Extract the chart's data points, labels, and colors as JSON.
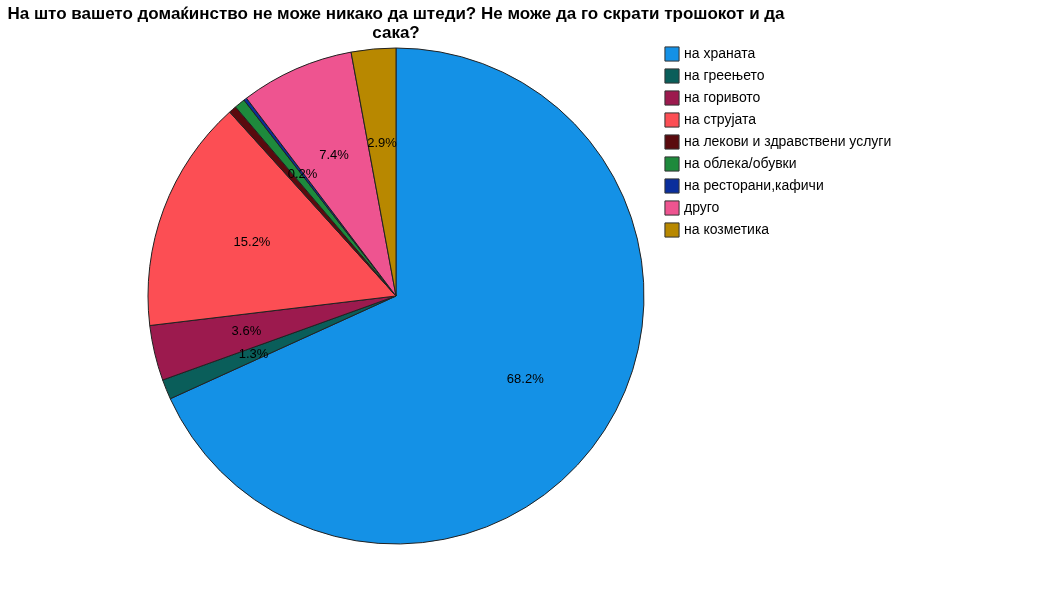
{
  "chart_data": {
    "type": "pie",
    "title": "На што вашето домаќинство  не може никако да штеди? Не може да го скрати трошокот и да сака?",
    "categories": [
      "на храната",
      "на греењето",
      "на горивото",
      "на струјата",
      "на лекови и здравствени услуги",
      "на облека/обувки",
      "на ресторани,кафичи",
      "друго",
      "на козметика"
    ],
    "values": [
      68.2,
      1.3,
      3.6,
      15.2,
      0.5,
      0.7,
      0.2,
      7.4,
      2.9
    ],
    "value_labels": [
      "68.2%",
      "1.3%",
      "3.6%",
      "15.2%",
      null,
      null,
      "0.2%",
      "7.4%",
      "2.9%"
    ],
    "colors": [
      "#1491e6",
      "#0a5e5a",
      "#9c1a4e",
      "#fc4e54",
      "#5a0a0e",
      "#1e8a3c",
      "#0a2e9c",
      "#ee5490",
      "#b88800"
    ],
    "legend": "right"
  }
}
